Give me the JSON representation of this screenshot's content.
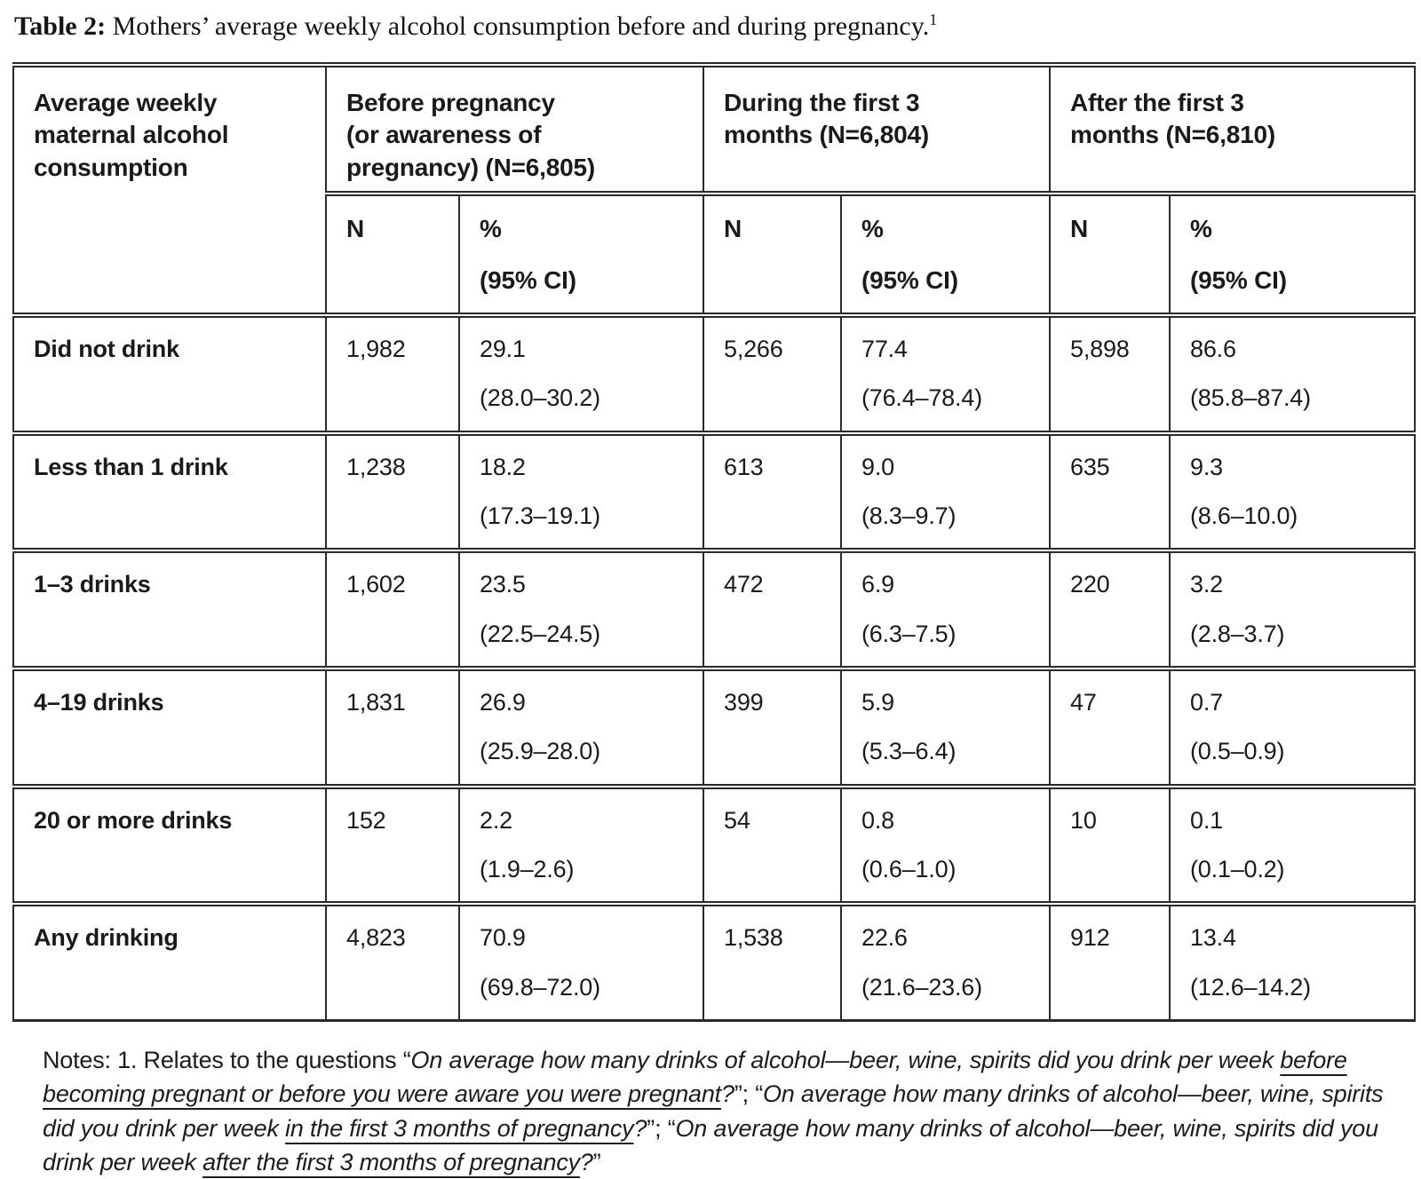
{
  "page": {
    "title_prefix": "Table 2:",
    "title_rest": " Mothers’ average weekly alcohol consumption before and during pregnancy.",
    "title_footnote": "1"
  },
  "table": {
    "col1_header": "Average weekly\nmaternal alcohol\nconsumption",
    "groups": [
      {
        "label": "Before pregnancy\n(or awareness of\npregnancy) (N=6,805)"
      },
      {
        "label": "During the first 3\nmonths (N=6,804)"
      },
      {
        "label": "After the first 3\nmonths (N=6,810)"
      }
    ],
    "subheaders": {
      "n": "N",
      "pct": "%\n(95% CI)"
    },
    "rows": [
      {
        "label": "Did not drink",
        "before_n": "1,982",
        "before_pct": "29.1\n(28.0–30.2)",
        "during_n": "5,266",
        "during_pct": "77.4\n(76.4–78.4)",
        "after_n": "5,898",
        "after_pct": "86.6\n(85.8–87.4)"
      },
      {
        "label": "Less than 1 drink",
        "before_n": "1,238",
        "before_pct": "18.2\n(17.3–19.1)",
        "during_n": "613",
        "during_pct": "9.0\n(8.3–9.7)",
        "after_n": "635",
        "after_pct": "9.3\n(8.6–10.0)"
      },
      {
        "label": "1–3 drinks",
        "before_n": "1,602",
        "before_pct": "23.5\n(22.5–24.5)",
        "during_n": "472",
        "during_pct": "6.9\n(6.3–7.5)",
        "after_n": "220",
        "after_pct": "3.2\n(2.8–3.7)"
      },
      {
        "label": "4–19 drinks",
        "before_n": "1,831",
        "before_pct": "26.9\n(25.9–28.0)",
        "during_n": "399",
        "during_pct": "5.9\n(5.3–6.4)",
        "after_n": "47",
        "after_pct": "0.7\n(0.5–0.9)"
      },
      {
        "label": "20 or more drinks",
        "before_n": "152",
        "before_pct": "2.2\n(1.9–2.6)",
        "during_n": "54",
        "during_pct": "0.8\n(0.6–1.0)",
        "after_n": "10",
        "after_pct": "0.1\n(0.1–0.2)"
      },
      {
        "label": "Any drinking",
        "before_n": "4,823",
        "before_pct": "70.9\n(69.8–72.0)",
        "during_n": "1,538",
        "during_pct": "22.6\n(21.6–23.6)",
        "after_n": "912",
        "after_pct": "13.4\n(12.6–14.2)"
      }
    ]
  },
  "notes": {
    "segments": [
      {
        "text": "Notes: 1. Relates to the questions “",
        "style": "plain"
      },
      {
        "text": "On average how many drinks of alcohol—beer, wine, spirits did you drink per week ",
        "style": "italic"
      },
      {
        "text": "before becoming pregnant or before you were aware you were pregnant",
        "style": "italic-underline"
      },
      {
        "text": "?",
        "style": "italic"
      },
      {
        "text": "”; “",
        "style": "plain"
      },
      {
        "text": "On average how many drinks of alcohol—beer, wine, spirits did you drink per week ",
        "style": "italic"
      },
      {
        "text": "in the first 3 months of pregnancy",
        "style": "italic-underline"
      },
      {
        "text": "?",
        "style": "italic"
      },
      {
        "text": "”; “",
        "style": "plain"
      },
      {
        "text": "On average how many drinks of alcohol—beer, wine, spirits did you drink per week ",
        "style": "italic"
      },
      {
        "text": "after the first 3 months of pregnancy",
        "style": "italic-underline"
      },
      {
        "text": "?",
        "style": "italic"
      },
      {
        "text": "”",
        "style": "plain"
      }
    ]
  }
}
